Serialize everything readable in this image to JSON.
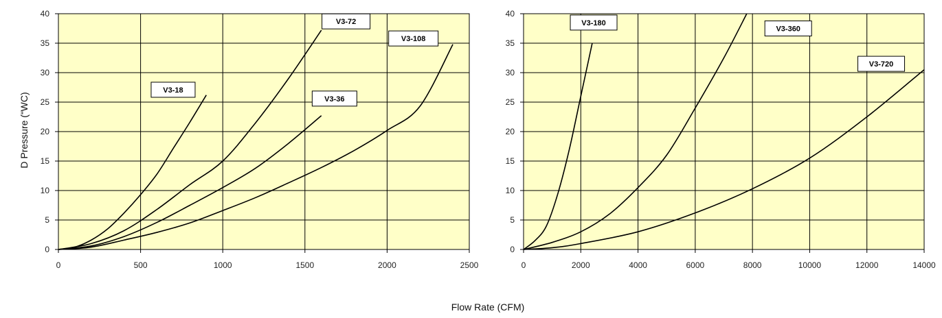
{
  "colors": {
    "plot_background": "#ffffc8",
    "grid": "#000000",
    "curve": "#000000"
  },
  "y_axis_title": "D Pressure (“WC)",
  "x_axis_title": "Flow Rate (CFM)",
  "chart_data": [
    {
      "type": "line",
      "xlim": [
        0,
        2500
      ],
      "ylim": [
        0,
        40
      ],
      "x_ticks": [
        0,
        500,
        1000,
        1500,
        2000,
        2500
      ],
      "y_ticks": [
        0,
        5,
        10,
        15,
        20,
        25,
        30,
        35,
        40
      ],
      "x_tick_labels": [
        "0",
        "500",
        "1000",
        "1500",
        "2000",
        "2500"
      ],
      "y_tick_labels": [
        "0",
        "5",
        "10",
        "15",
        "20",
        "25",
        "30",
        "35",
        "40"
      ],
      "grid": true,
      "series": [
        {
          "name": "V3-18",
          "x": [
            0,
            100,
            200,
            300,
            400,
            500,
            600,
            700,
            800,
            900
          ],
          "y": [
            0,
            0.4,
            1.6,
            3.5,
            6.2,
            9.3,
            12.8,
            17.2,
            21.6,
            26.2
          ]
        },
        {
          "name": "V3-72",
          "x": [
            0,
            200,
            400,
            600,
            800,
            1000,
            1200,
            1400,
            1600
          ],
          "y": [
            0,
            1.0,
            3.2,
            6.8,
            11.0,
            15.0,
            21.5,
            29.0,
            37.2
          ]
        },
        {
          "name": "V3-36",
          "x": [
            0,
            200,
            400,
            600,
            800,
            1000,
            1200,
            1400,
            1600
          ],
          "y": [
            0,
            0.6,
            2.2,
            4.6,
            7.5,
            10.5,
            13.8,
            18.0,
            22.7
          ]
        },
        {
          "name": "V3-108",
          "x": [
            0,
            200,
            400,
            600,
            800,
            1000,
            1200,
            1400,
            1600,
            1800,
            2000,
            2200,
            2400
          ],
          "y": [
            0,
            0.4,
            1.6,
            2.9,
            4.5,
            6.6,
            8.8,
            11.3,
            13.9,
            16.8,
            20.2,
            24.3,
            34.8
          ]
        }
      ]
    },
    {
      "type": "line",
      "xlim": [
        0,
        14000
      ],
      "ylim": [
        0,
        40
      ],
      "x_ticks": [
        0,
        2000,
        4000,
        6000,
        8000,
        10000,
        12000,
        14000
      ],
      "y_ticks": [
        0,
        5,
        10,
        15,
        20,
        25,
        30,
        35,
        40
      ],
      "x_tick_labels": [
        "0",
        "2000",
        "4000",
        "6000",
        "8000",
        "10000",
        "12000",
        "14000"
      ],
      "y_tick_labels": [
        "0",
        "5",
        "10",
        "15",
        "20",
        "25",
        "30",
        "35",
        "40"
      ],
      "grid": true,
      "series": [
        {
          "name": "V3-180",
          "x": [
            0,
            400,
            800,
            1200,
            1600,
            2000,
            2400
          ],
          "y": [
            0,
            1.5,
            4.0,
            9.5,
            17.0,
            26.0,
            35.0
          ]
        },
        {
          "name": "V3-360",
          "x": [
            0,
            1000,
            2000,
            3000,
            4000,
            5000,
            6000,
            7000,
            7800
          ],
          "y": [
            0,
            1.2,
            3.0,
            6.0,
            10.5,
            16.0,
            24.0,
            32.5,
            40.0
          ]
        },
        {
          "name": "V3-720",
          "x": [
            0,
            1000,
            2000,
            4000,
            6000,
            8000,
            10000,
            12000,
            14000
          ],
          "y": [
            0,
            0.3,
            1.0,
            3.0,
            6.2,
            10.3,
            15.5,
            22.5,
            30.5
          ]
        }
      ]
    }
  ]
}
